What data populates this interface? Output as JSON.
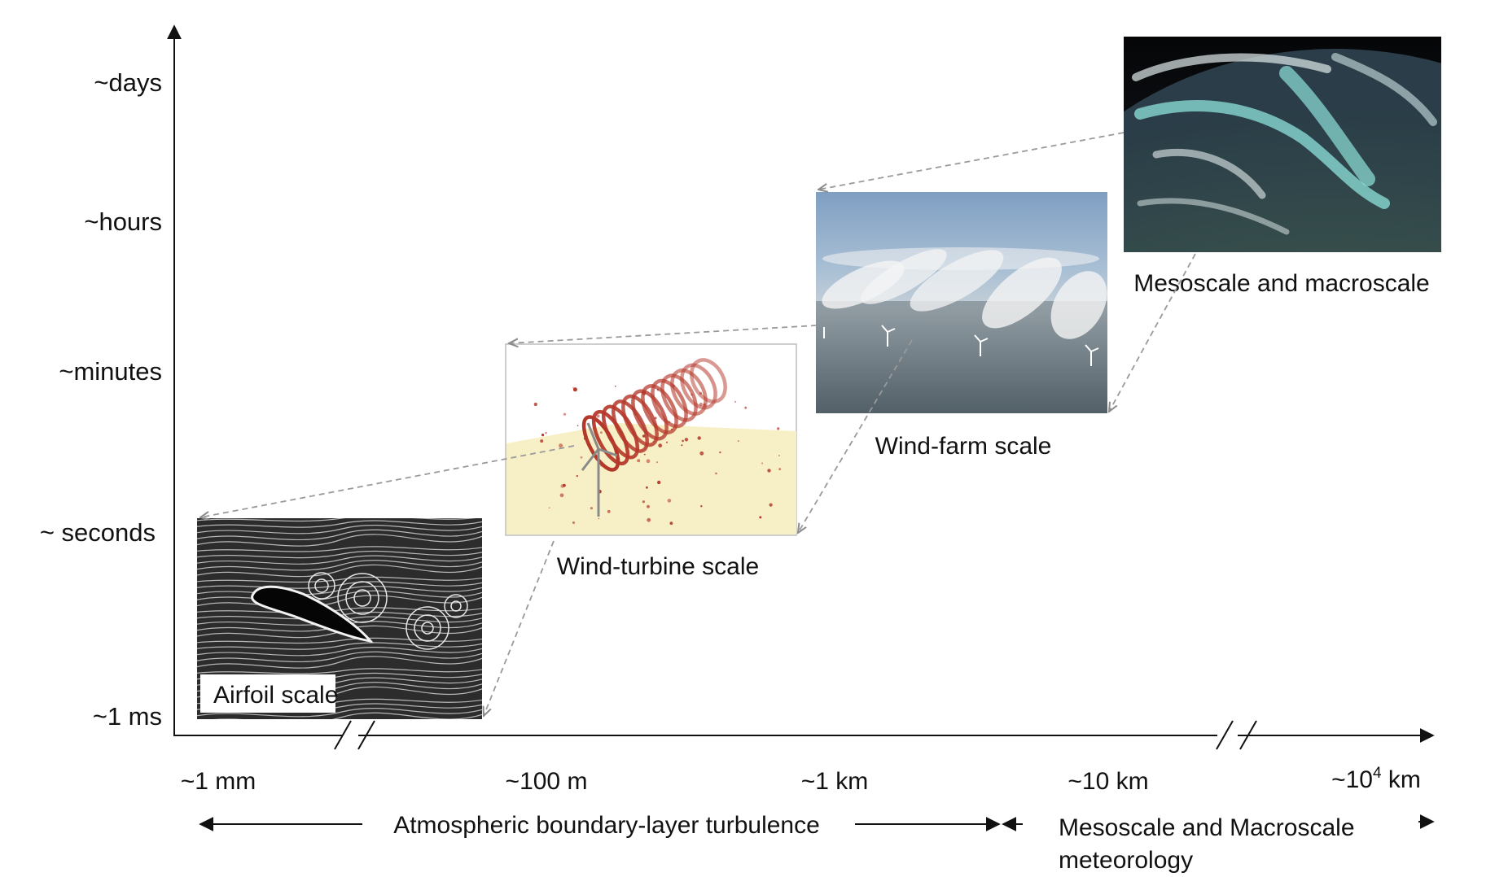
{
  "y_axis": {
    "ticks": [
      "~days",
      "~hours",
      "~minutes",
      "~ seconds",
      "~1 ms"
    ]
  },
  "x_axis": {
    "ticks": [
      {
        "text": "~1 mm"
      },
      {
        "text": "~100 m"
      },
      {
        "text": "~1 km"
      },
      {
        "text": "~10 km"
      },
      {
        "text": "~10",
        "sup": "4",
        "suffix": " km"
      }
    ]
  },
  "panels": {
    "airfoil": {
      "caption": "Airfoil scale"
    },
    "turbine": {
      "caption": "Wind-turbine scale"
    },
    "farm": {
      "caption": "Wind-farm scale"
    },
    "meso": {
      "caption": "Mesoscale and macroscale"
    }
  },
  "bands": {
    "boundary_layer": "Atmospheric boundary-layer turbulence",
    "meteorology_line1": "Mesoscale and Macroscale",
    "meteorology_line2": "meteorology"
  },
  "colors": {
    "axis": "#111111",
    "connector": "#9a9a9a",
    "vortex": "#b5392b",
    "ground": "#f6efc4",
    "cloud": "#8fe3dc"
  }
}
